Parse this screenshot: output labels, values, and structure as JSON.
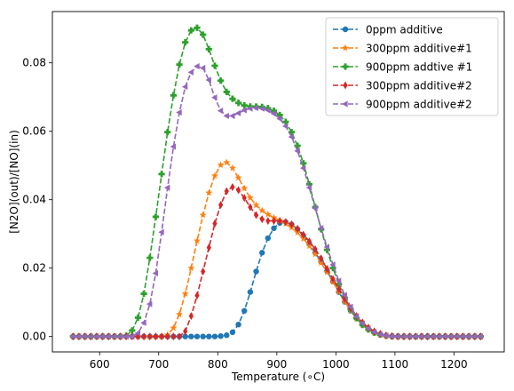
{
  "chart_data": {
    "type": "line",
    "xlabel": "Temperature (∘C)",
    "ylabel": "[N2O](out)/[NO](in)",
    "xlim": [
      520,
      1285
    ],
    "ylim": [
      -0.0045,
      0.095
    ],
    "xticks": [
      600,
      700,
      800,
      900,
      1000,
      1100,
      1200
    ],
    "yticks": [
      0.0,
      0.02,
      0.04,
      0.06,
      0.08
    ],
    "ytick_labels": [
      "0.00",
      "0.02",
      "0.04",
      "0.06",
      "0.08"
    ],
    "grid": false,
    "legend_position": "top-right",
    "x_start": 555,
    "x_end": 1250,
    "x_step": 10,
    "series": [
      {
        "name": "0ppm additive",
        "color": "#1f77b4",
        "marker": "circle",
        "points": [
          [
            555,
            0
          ],
          [
            800,
            0
          ],
          [
            820,
            0.0005
          ],
          [
            830,
            0.002
          ],
          [
            840,
            0.005
          ],
          [
            850,
            0.01
          ],
          [
            860,
            0.016
          ],
          [
            870,
            0.022
          ],
          [
            880,
            0.027
          ],
          [
            890,
            0.0305
          ],
          [
            900,
            0.0328
          ],
          [
            910,
            0.0336
          ],
          [
            920,
            0.0333
          ],
          [
            930,
            0.0322
          ],
          [
            940,
            0.0305
          ],
          [
            950,
            0.0283
          ],
          [
            960,
            0.0258
          ],
          [
            970,
            0.0232
          ],
          [
            980,
            0.0205
          ],
          [
            990,
            0.0177
          ],
          [
            1000,
            0.0145
          ],
          [
            1010,
            0.0115
          ],
          [
            1020,
            0.0088
          ],
          [
            1030,
            0.0063
          ],
          [
            1040,
            0.0043
          ],
          [
            1050,
            0.0027
          ],
          [
            1060,
            0.0016
          ],
          [
            1070,
            0.0008
          ],
          [
            1080,
            0.0003
          ],
          [
            1090,
            0.0001
          ],
          [
            1100,
            0
          ],
          [
            1250,
            0
          ]
        ]
      },
      {
        "name": "300ppm additive#1",
        "color": "#ff7f0e",
        "marker": "star",
        "points": [
          [
            555,
            0
          ],
          [
            710,
            0
          ],
          [
            720,
            0.001
          ],
          [
            730,
            0.004
          ],
          [
            740,
            0.009
          ],
          [
            750,
            0.016
          ],
          [
            760,
            0.024
          ],
          [
            770,
            0.032
          ],
          [
            780,
            0.039
          ],
          [
            790,
            0.045
          ],
          [
            800,
            0.049
          ],
          [
            810,
            0.0513
          ],
          [
            820,
            0.0505
          ],
          [
            830,
            0.048
          ],
          [
            840,
            0.0448
          ],
          [
            850,
            0.0418
          ],
          [
            860,
            0.0393
          ],
          [
            870,
            0.0375
          ],
          [
            880,
            0.0362
          ],
          [
            890,
            0.0352
          ],
          [
            900,
            0.0343
          ],
          [
            910,
            0.0335
          ],
          [
            920,
            0.0325
          ],
          [
            930,
            0.0312
          ],
          [
            940,
            0.0296
          ],
          [
            950,
            0.0276
          ],
          [
            960,
            0.0253
          ],
          [
            970,
            0.0228
          ],
          [
            980,
            0.0202
          ],
          [
            990,
            0.0174
          ],
          [
            1000,
            0.0145
          ],
          [
            1010,
            0.0116
          ],
          [
            1020,
            0.0088
          ],
          [
            1030,
            0.0063
          ],
          [
            1040,
            0.0042
          ],
          [
            1050,
            0.0026
          ],
          [
            1060,
            0.0015
          ],
          [
            1070,
            0.0007
          ],
          [
            1080,
            0.0003
          ],
          [
            1090,
            0.0001
          ],
          [
            1100,
            0
          ],
          [
            1250,
            0
          ]
        ]
      },
      {
        "name": "900ppm addtive #1",
        "color": "#2ca02c",
        "marker": "plus",
        "points": [
          [
            555,
            0
          ],
          [
            640,
            0
          ],
          [
            650,
            0.0005
          ],
          [
            660,
            0.003
          ],
          [
            670,
            0.008
          ],
          [
            680,
            0.017
          ],
          [
            690,
            0.029
          ],
          [
            700,
            0.041
          ],
          [
            710,
            0.054
          ],
          [
            720,
            0.0655
          ],
          [
            730,
            0.0755
          ],
          [
            740,
            0.0835
          ],
          [
            750,
            0.0885
          ],
          [
            760,
            0.0905
          ],
          [
            770,
            0.09
          ],
          [
            780,
            0.0865
          ],
          [
            790,
            0.0815
          ],
          [
            800,
            0.0768
          ],
          [
            810,
            0.0728
          ],
          [
            820,
            0.0702
          ],
          [
            830,
            0.0688
          ],
          [
            840,
            0.0678
          ],
          [
            850,
            0.0673
          ],
          [
            860,
            0.0672
          ],
          [
            870,
            0.0672
          ],
          [
            880,
            0.067
          ],
          [
            890,
            0.0665
          ],
          [
            900,
            0.0655
          ],
          [
            910,
            0.064
          ],
          [
            920,
            0.0615
          ],
          [
            930,
            0.058
          ],
          [
            940,
            0.0535
          ],
          [
            950,
            0.0478
          ],
          [
            960,
            0.0412
          ],
          [
            970,
            0.0345
          ],
          [
            980,
            0.0282
          ],
          [
            990,
            0.0225
          ],
          [
            1000,
            0.0175
          ],
          [
            1010,
            0.0132
          ],
          [
            1020,
            0.0095
          ],
          [
            1030,
            0.0065
          ],
          [
            1040,
            0.0042
          ],
          [
            1050,
            0.0026
          ],
          [
            1060,
            0.0015
          ],
          [
            1070,
            0.0008
          ],
          [
            1080,
            0.0003
          ],
          [
            1090,
            0.0001
          ],
          [
            1100,
            0
          ],
          [
            1250,
            0
          ]
        ]
      },
      {
        "name": "300ppm additive#2",
        "color": "#d62728",
        "marker": "thin-diamond",
        "points": [
          [
            555,
            0
          ],
          [
            735,
            0
          ],
          [
            745,
            0.0015
          ],
          [
            755,
            0.006
          ],
          [
            765,
            0.012
          ],
          [
            775,
            0.019
          ],
          [
            785,
            0.026
          ],
          [
            795,
            0.033
          ],
          [
            805,
            0.0385
          ],
          [
            815,
            0.0425
          ],
          [
            825,
            0.0437
          ],
          [
            835,
            0.0428
          ],
          [
            845,
            0.0405
          ],
          [
            855,
            0.0378
          ],
          [
            865,
            0.0355
          ],
          [
            875,
            0.0343
          ],
          [
            885,
            0.0338
          ],
          [
            895,
            0.0338
          ],
          [
            905,
            0.0338
          ],
          [
            915,
            0.0335
          ],
          [
            925,
            0.0328
          ],
          [
            935,
            0.0315
          ],
          [
            945,
            0.0298
          ],
          [
            955,
            0.0278
          ],
          [
            965,
            0.0255
          ],
          [
            975,
            0.0228
          ],
          [
            985,
            0.0198
          ],
          [
            995,
            0.0168
          ],
          [
            1005,
            0.0138
          ],
          [
            1015,
            0.011
          ],
          [
            1025,
            0.0083
          ],
          [
            1035,
            0.006
          ],
          [
            1045,
            0.0041
          ],
          [
            1055,
            0.0026
          ],
          [
            1065,
            0.0015
          ],
          [
            1075,
            0.0008
          ],
          [
            1085,
            0.0003
          ],
          [
            1095,
            0.0001
          ],
          [
            1105,
            0
          ],
          [
            1250,
            0
          ]
        ]
      },
      {
        "name": "900ppm additive#2",
        "color": "#9467bd",
        "marker": "triangle-left",
        "points": [
          [
            555,
            0
          ],
          [
            660,
            0
          ],
          [
            670,
            0.002
          ],
          [
            680,
            0.006
          ],
          [
            690,
            0.013
          ],
          [
            700,
            0.024
          ],
          [
            710,
            0.037
          ],
          [
            720,
            0.05
          ],
          [
            730,
            0.061
          ],
          [
            740,
            0.07
          ],
          [
            750,
            0.076
          ],
          [
            760,
            0.0785
          ],
          [
            770,
            0.0795
          ],
          [
            780,
            0.0775
          ],
          [
            790,
            0.0725
          ],
          [
            800,
            0.0672
          ],
          [
            810,
            0.0648
          ],
          [
            820,
            0.0642
          ],
          [
            830,
            0.0648
          ],
          [
            840,
            0.0658
          ],
          [
            850,
            0.0665
          ],
          [
            860,
            0.0668
          ],
          [
            870,
            0.0668
          ],
          [
            880,
            0.0665
          ],
          [
            890,
            0.0658
          ],
          [
            900,
            0.0645
          ],
          [
            910,
            0.0628
          ],
          [
            920,
            0.0602
          ],
          [
            930,
            0.0565
          ],
          [
            940,
            0.052
          ],
          [
            950,
            0.0465
          ],
          [
            960,
            0.0405
          ],
          [
            970,
            0.0345
          ],
          [
            980,
            0.0288
          ],
          [
            990,
            0.0235
          ],
          [
            1000,
            0.0185
          ],
          [
            1010,
            0.014
          ],
          [
            1020,
            0.0102
          ],
          [
            1030,
            0.0071
          ],
          [
            1040,
            0.0047
          ],
          [
            1050,
            0.0029
          ],
          [
            1060,
            0.0017
          ],
          [
            1070,
            0.0009
          ],
          [
            1080,
            0.0004
          ],
          [
            1090,
            0.0001
          ],
          [
            1100,
            0
          ],
          [
            1250,
            0
          ]
        ]
      }
    ]
  }
}
